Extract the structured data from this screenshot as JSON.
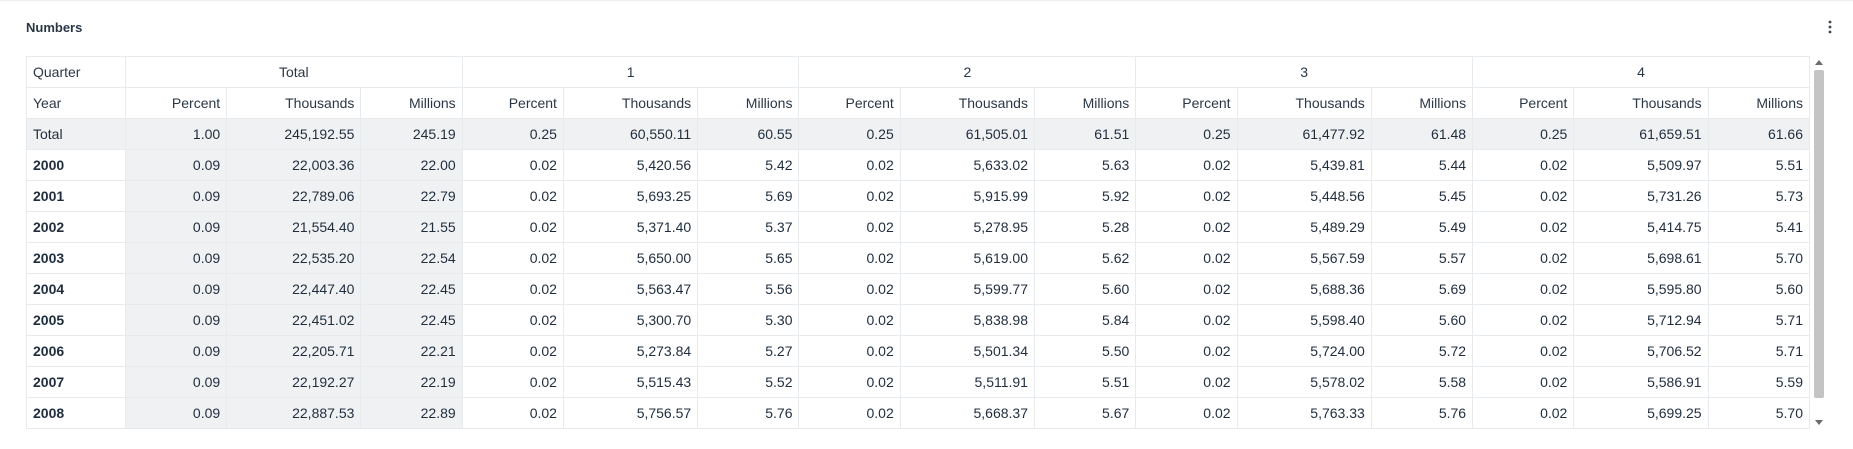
{
  "panel": {
    "title": "Numbers",
    "menu_icon": "more-vertical-icon"
  },
  "table": {
    "row1": {
      "label": "Quarter",
      "groups": [
        "Total",
        "1",
        "2",
        "3",
        "4"
      ]
    },
    "row2": {
      "label": "Year",
      "measures": [
        "Percent",
        "Thousands",
        "Millions"
      ]
    },
    "rows": [
      {
        "label": "Total",
        "values": [
          "1.00",
          "245,192.55",
          "245.19",
          "0.25",
          "60,550.11",
          "60.55",
          "0.25",
          "61,505.01",
          "61.51",
          "0.25",
          "61,477.92",
          "61.48",
          "0.25",
          "61,659.51",
          "61.66"
        ]
      },
      {
        "label": "2000",
        "values": [
          "0.09",
          "22,003.36",
          "22.00",
          "0.02",
          "5,420.56",
          "5.42",
          "0.02",
          "5,633.02",
          "5.63",
          "0.02",
          "5,439.81",
          "5.44",
          "0.02",
          "5,509.97",
          "5.51"
        ]
      },
      {
        "label": "2001",
        "values": [
          "0.09",
          "22,789.06",
          "22.79",
          "0.02",
          "5,693.25",
          "5.69",
          "0.02",
          "5,915.99",
          "5.92",
          "0.02",
          "5,448.56",
          "5.45",
          "0.02",
          "5,731.26",
          "5.73"
        ]
      },
      {
        "label": "2002",
        "values": [
          "0.09",
          "21,554.40",
          "21.55",
          "0.02",
          "5,371.40",
          "5.37",
          "0.02",
          "5,278.95",
          "5.28",
          "0.02",
          "5,489.29",
          "5.49",
          "0.02",
          "5,414.75",
          "5.41"
        ]
      },
      {
        "label": "2003",
        "values": [
          "0.09",
          "22,535.20",
          "22.54",
          "0.02",
          "5,650.00",
          "5.65",
          "0.02",
          "5,619.00",
          "5.62",
          "0.02",
          "5,567.59",
          "5.57",
          "0.02",
          "5,698.61",
          "5.70"
        ]
      },
      {
        "label": "2004",
        "values": [
          "0.09",
          "22,447.40",
          "22.45",
          "0.02",
          "5,563.47",
          "5.56",
          "0.02",
          "5,599.77",
          "5.60",
          "0.02",
          "5,688.36",
          "5.69",
          "0.02",
          "5,595.80",
          "5.60"
        ]
      },
      {
        "label": "2005",
        "values": [
          "0.09",
          "22,451.02",
          "22.45",
          "0.02",
          "5,300.70",
          "5.30",
          "0.02",
          "5,838.98",
          "5.84",
          "0.02",
          "5,598.40",
          "5.60",
          "0.02",
          "5,712.94",
          "5.71"
        ]
      },
      {
        "label": "2006",
        "values": [
          "0.09",
          "22,205.71",
          "22.21",
          "0.02",
          "5,273.84",
          "5.27",
          "0.02",
          "5,501.34",
          "5.50",
          "0.02",
          "5,724.00",
          "5.72",
          "0.02",
          "5,706.52",
          "5.71"
        ]
      },
      {
        "label": "2007",
        "values": [
          "0.09",
          "22,192.27",
          "22.19",
          "0.02",
          "5,515.43",
          "5.52",
          "0.02",
          "5,511.91",
          "5.51",
          "0.02",
          "5,578.02",
          "5.58",
          "0.02",
          "5,586.91",
          "5.59"
        ]
      },
      {
        "label": "2008",
        "values": [
          "0.09",
          "22,887.53",
          "22.89",
          "0.02",
          "5,756.57",
          "5.76",
          "0.02",
          "5,668.37",
          "5.67",
          "0.02",
          "5,763.33",
          "5.76",
          "0.02",
          "5,699.25",
          "5.70"
        ]
      }
    ]
  }
}
